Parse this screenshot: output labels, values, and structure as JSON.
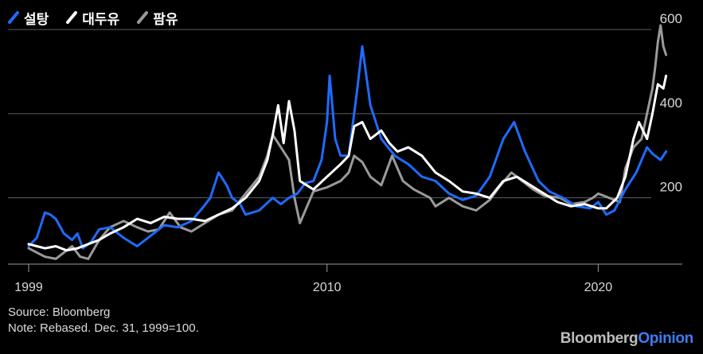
{
  "chart_data": {
    "type": "line",
    "title": "",
    "xlabel": "",
    "ylabel": "",
    "xlim": [
      1999,
      2023.1
    ],
    "ylim": [
      50,
      640
    ],
    "yticks": [
      200,
      400,
      600
    ],
    "xticks": [
      1999,
      2010,
      2020
    ],
    "grid": "horizontal",
    "legend_position": "top-left",
    "series": [
      {
        "name": "설탕",
        "color": "#1f6bff",
        "x": [
          1999.0,
          1999.3,
          1999.6,
          1999.8,
          2000.0,
          2000.3,
          2000.6,
          2000.8,
          2001.0,
          2001.3,
          2001.6,
          2002.0,
          2002.5,
          2003.0,
          2003.5,
          2004.0,
          2004.5,
          2005.0,
          2005.4,
          2005.7,
          2006.0,
          2006.3,
          2006.5,
          2006.8,
          2007.0,
          2007.5,
          2008.0,
          2008.3,
          2008.6,
          2008.9,
          2009.2,
          2009.5,
          2009.8,
          2010.0,
          2010.1,
          2010.3,
          2010.5,
          2010.8,
          2011.1,
          2011.3,
          2011.6,
          2012.0,
          2012.5,
          2013.0,
          2013.5,
          2014.0,
          2014.5,
          2015.0,
          2015.5,
          2016.0,
          2016.5,
          2016.9,
          2017.3,
          2017.8,
          2018.2,
          2018.7,
          2019.2,
          2019.7,
          2020.0,
          2020.3,
          2020.6,
          2021.0,
          2021.4,
          2021.8,
          2022.0,
          2022.3,
          2022.5
        ],
        "values": [
          85,
          105,
          165,
          160,
          150,
          115,
          100,
          115,
          80,
          95,
          125,
          130,
          105,
          85,
          110,
          135,
          130,
          145,
          175,
          200,
          260,
          230,
          200,
          185,
          160,
          170,
          200,
          185,
          200,
          210,
          235,
          240,
          290,
          380,
          490,
          340,
          300,
          300,
          450,
          560,
          420,
          340,
          300,
          280,
          250,
          240,
          210,
          195,
          205,
          250,
          340,
          380,
          310,
          240,
          215,
          200,
          180,
          175,
          190,
          160,
          170,
          220,
          260,
          320,
          305,
          290,
          310
        ]
      },
      {
        "name": "대두유",
        "color": "#ffffff",
        "x": [
          1999.0,
          1999.3,
          1999.6,
          2000.0,
          2000.4,
          2000.8,
          2001.2,
          2001.6,
          2002.0,
          2002.5,
          2003.0,
          2003.5,
          2004.0,
          2004.5,
          2005.0,
          2005.5,
          2006.0,
          2006.5,
          2007.0,
          2007.5,
          2007.8,
          2008.0,
          2008.2,
          2008.4,
          2008.6,
          2008.8,
          2009.0,
          2009.5,
          2010.0,
          2010.5,
          2010.8,
          2011.0,
          2011.3,
          2011.6,
          2012.0,
          2012.3,
          2012.6,
          2013.0,
          2013.5,
          2014.0,
          2014.5,
          2015.0,
          2015.5,
          2016.0,
          2016.5,
          2017.0,
          2017.5,
          2018.0,
          2018.5,
          2019.0,
          2019.5,
          2020.0,
          2020.3,
          2020.7,
          2021.0,
          2021.3,
          2021.5,
          2021.8,
          2022.0,
          2022.2,
          2022.4,
          2022.5
        ],
        "values": [
          90,
          85,
          80,
          85,
          75,
          80,
          90,
          100,
          115,
          130,
          150,
          140,
          155,
          150,
          150,
          145,
          160,
          175,
          200,
          240,
          290,
          350,
          420,
          330,
          430,
          360,
          240,
          220,
          250,
          280,
          300,
          370,
          380,
          340,
          360,
          330,
          310,
          320,
          300,
          260,
          240,
          215,
          210,
          200,
          240,
          250,
          230,
          210,
          190,
          180,
          185,
          175,
          175,
          200,
          250,
          340,
          380,
          340,
          400,
          470,
          460,
          490
        ]
      },
      {
        "name": "팜유",
        "color": "#9a9a9a",
        "x": [
          1999.0,
          1999.3,
          1999.6,
          2000.0,
          2000.3,
          2000.6,
          2000.9,
          2001.2,
          2001.6,
          2002.0,
          2002.5,
          2003.0,
          2003.4,
          2003.8,
          2004.2,
          2004.6,
          2005.0,
          2005.5,
          2006.0,
          2006.5,
          2007.0,
          2007.5,
          2007.8,
          2008.0,
          2008.2,
          2008.4,
          2008.6,
          2008.8,
          2009.0,
          2009.5,
          2010.0,
          2010.5,
          2010.8,
          2011.0,
          2011.3,
          2011.6,
          2012.0,
          2012.4,
          2012.8,
          2013.2,
          2013.8,
          2014.0,
          2014.5,
          2015.0,
          2015.5,
          2016.0,
          2016.4,
          2016.8,
          2017.2,
          2017.6,
          2018.0,
          2018.6,
          2019.0,
          2019.5,
          2019.8,
          2020.0,
          2020.4,
          2020.8,
          2021.0,
          2021.3,
          2021.6,
          2021.8,
          2022.0,
          2022.1,
          2022.2,
          2022.3,
          2022.4,
          2022.5
        ],
        "values": [
          80,
          70,
          60,
          55,
          70,
          85,
          60,
          55,
          100,
          130,
          145,
          130,
          120,
          125,
          165,
          130,
          120,
          140,
          160,
          170,
          210,
          250,
          300,
          350,
          330,
          310,
          290,
          200,
          140,
          215,
          225,
          240,
          260,
          300,
          285,
          250,
          230,
          300,
          240,
          220,
          200,
          180,
          200,
          180,
          170,
          195,
          230,
          260,
          240,
          220,
          205,
          200,
          185,
          190,
          200,
          210,
          200,
          190,
          270,
          320,
          340,
          400,
          460,
          510,
          570,
          610,
          560,
          540
        ]
      }
    ]
  },
  "footer": {
    "source": "Source: Bloomberg",
    "note": "Note: Rebased. Dec. 31, 1999=100."
  },
  "brand": {
    "part1": "Bloomberg",
    "part2": "Opinion"
  }
}
